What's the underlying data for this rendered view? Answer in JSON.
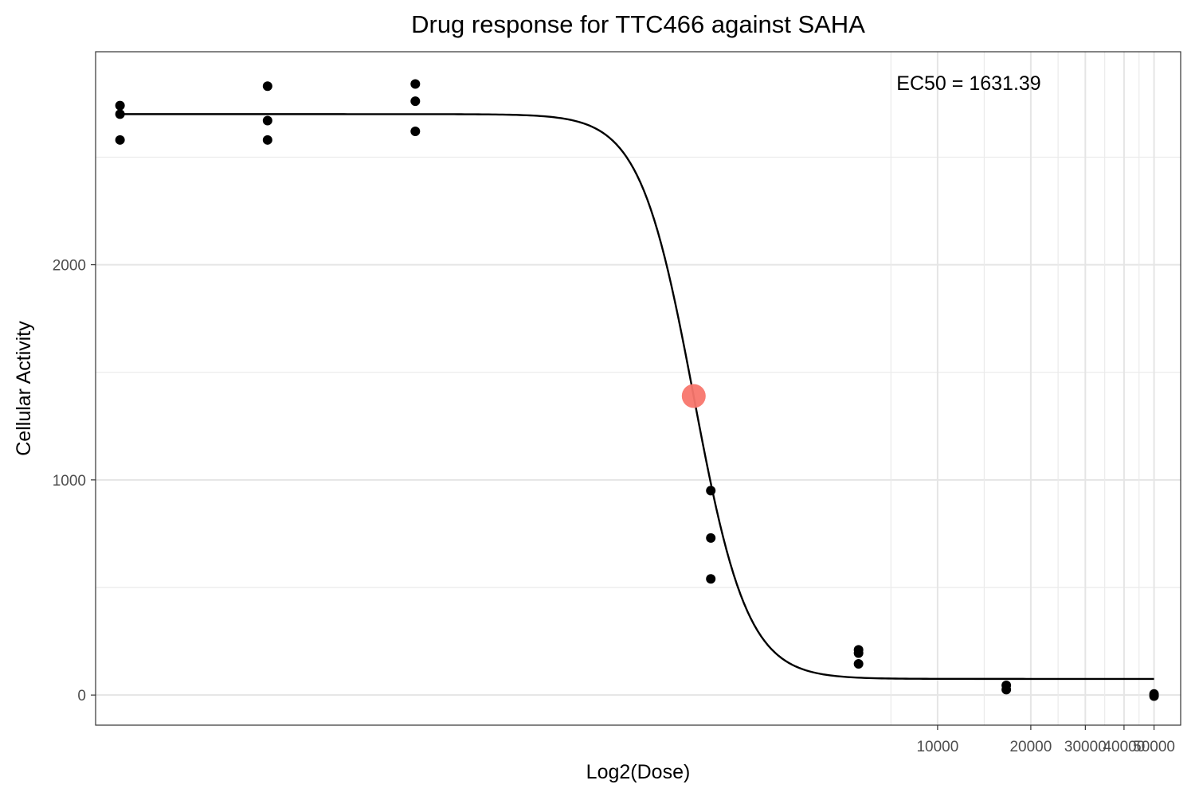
{
  "chart_data": {
    "type": "scatter",
    "title": "Drug response for TTC466 against SAHA",
    "xlabel": "Log2(Dose)",
    "ylabel": "Cellular Activity",
    "x_scale": "log2",
    "xlim": [
      19.1,
      60945
    ],
    "ylim": [
      -140,
      2990
    ],
    "x_ticks": [
      {
        "value": 10000,
        "label": "10000"
      },
      {
        "value": 20000,
        "label": "20000"
      },
      {
        "value": 30000,
        "label": "30000"
      },
      {
        "value": 40000,
        "label": "40000"
      },
      {
        "value": 50000,
        "label": "50000"
      }
    ],
    "y_ticks": [
      {
        "value": 0,
        "label": "0"
      },
      {
        "value": 1000,
        "label": "1000"
      },
      {
        "value": 2000,
        "label": "2000"
      }
    ],
    "grid": true,
    "annotation": "EC50 = 1631.39",
    "ec50_point": {
      "x": 1631.39,
      "y": 1390,
      "color": "#f8766d"
    },
    "fit_curve": {
      "top": 2700,
      "bottom": 75,
      "ec50": 1631.39,
      "hill": 5.0,
      "x_range": [
        22.9,
        50000
      ]
    },
    "points": [
      {
        "x": 22.9,
        "y": 2740
      },
      {
        "x": 22.9,
        "y": 2700
      },
      {
        "x": 22.9,
        "y": 2580
      },
      {
        "x": 68.6,
        "y": 2830
      },
      {
        "x": 68.6,
        "y": 2670
      },
      {
        "x": 68.6,
        "y": 2580
      },
      {
        "x": 205.8,
        "y": 2840
      },
      {
        "x": 205.8,
        "y": 2760
      },
      {
        "x": 205.8,
        "y": 2620
      },
      {
        "x": 1852,
        "y": 950
      },
      {
        "x": 1852,
        "y": 730
      },
      {
        "x": 1852,
        "y": 540
      },
      {
        "x": 5556,
        "y": 210
      },
      {
        "x": 5556,
        "y": 195
      },
      {
        "x": 5556,
        "y": 145
      },
      {
        "x": 16667,
        "y": 45
      },
      {
        "x": 16667,
        "y": 25
      },
      {
        "x": 50000,
        "y": 5
      },
      {
        "x": 50000,
        "y": -5
      }
    ],
    "colors": {
      "points": "#000000",
      "curve": "#000000",
      "highlight": "#f8766d"
    }
  }
}
